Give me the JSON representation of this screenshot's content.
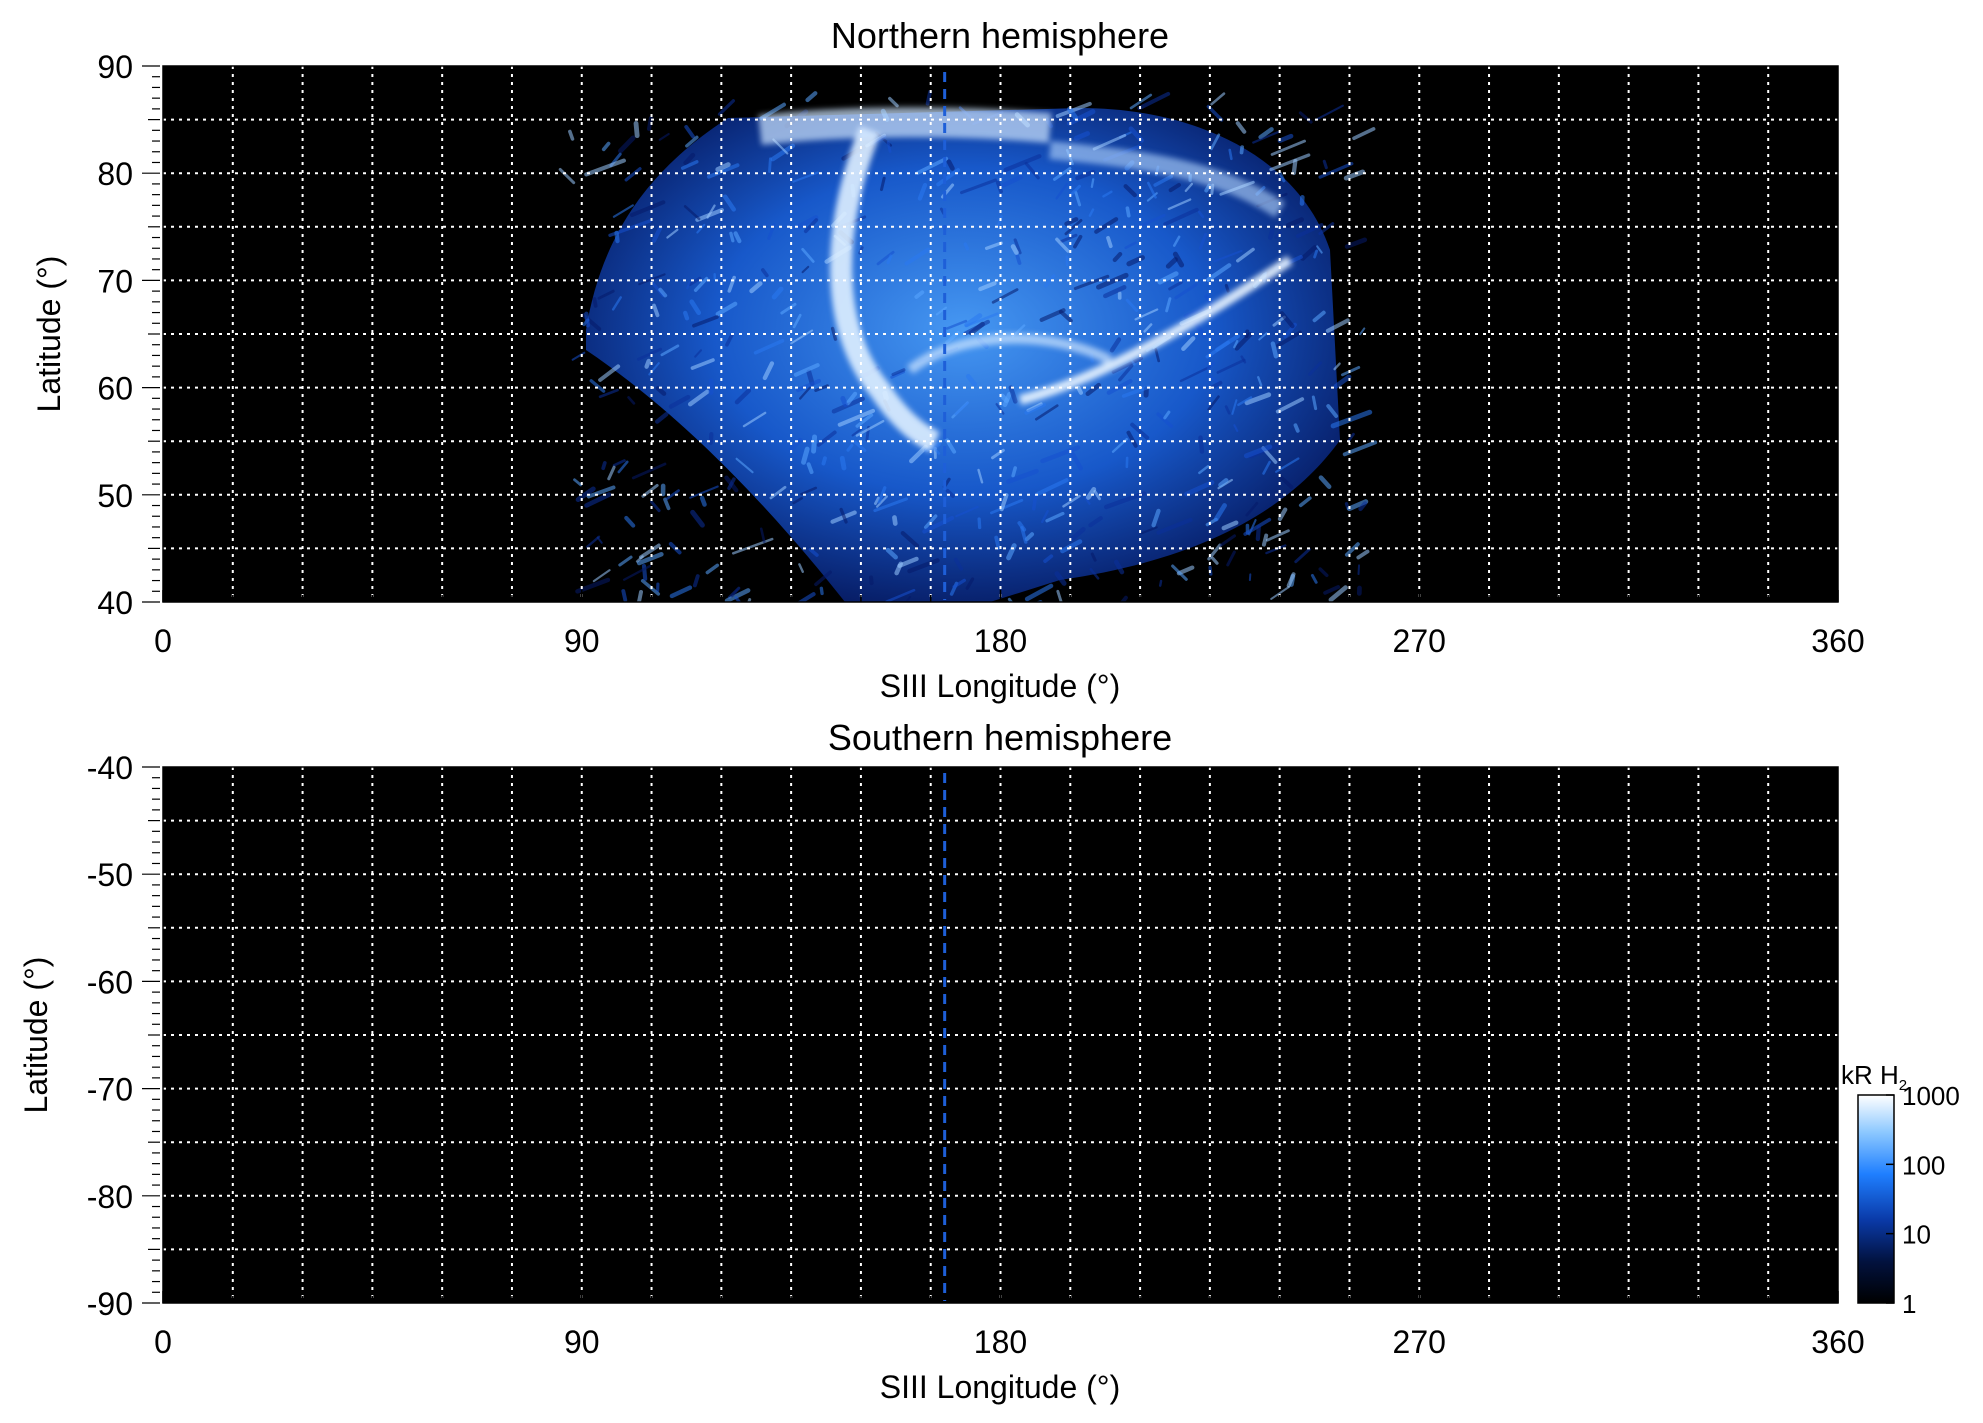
{
  "chart_data": [
    {
      "type": "heatmap",
      "title": "Northern hemisphere",
      "xlabel": "SIII Longitude (°)",
      "ylabel": "Latitude (°)",
      "xlim": [
        0,
        360
      ],
      "ylim": [
        40,
        90
      ],
      "x_ticks": [
        "0",
        "90",
        "180",
        "270",
        "360"
      ],
      "y_ticks": [
        "90",
        "80",
        "70",
        "60",
        "50",
        "40"
      ],
      "grid": true,
      "background": "#000000",
      "reference_longitude": 168,
      "emission": {
        "region_longitude": [
          88,
          258
        ],
        "region_latitude": [
          39,
          87
        ],
        "features": [
          {
            "lon": 160,
            "lat": 64,
            "level": "high"
          },
          {
            "lon": 167,
            "lat": 58,
            "level": "high"
          },
          {
            "lon": 225,
            "lat": 66,
            "level": "high"
          },
          {
            "lon": 150,
            "lat": 79,
            "level": "high"
          },
          {
            "lon": 175,
            "lat": 72,
            "level": "medium"
          }
        ]
      }
    },
    {
      "type": "heatmap",
      "title": "Southern hemisphere",
      "xlabel": "SIII Longitude (°)",
      "ylabel": "Latitude (°)",
      "xlim": [
        0,
        360
      ],
      "ylim": [
        -90,
        -40
      ],
      "x_ticks": [
        "0",
        "90",
        "180",
        "270",
        "360"
      ],
      "y_ticks": [
        "-40",
        "-50",
        "-60",
        "-70",
        "-80",
        "-90"
      ],
      "grid": true,
      "background": "#000000",
      "reference_longitude": 168
    }
  ],
  "colorbar": {
    "label": "kR H",
    "label_subscript": "2",
    "scale": "log",
    "range": [
      1,
      1000
    ],
    "ticks": [
      "1000",
      "100",
      "10",
      "1"
    ],
    "colors": [
      "#000000",
      "#02123f",
      "#0a3aa8",
      "#1f7fff",
      "#8cc8ff",
      "#ffffff"
    ]
  },
  "colors": {
    "grid": "#ffffff",
    "reference_line": "#1e5fd8"
  }
}
